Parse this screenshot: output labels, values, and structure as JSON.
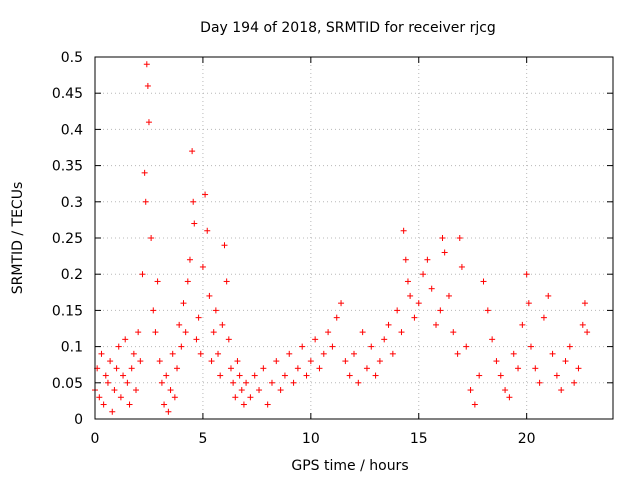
{
  "chart_data": {
    "type": "scatter",
    "title": "Day 194 of 2018, SRMTID for receiver rjcg",
    "xlabel": "GPS time / hours",
    "ylabel": "SRMTID / TECUs",
    "xlim": [
      0,
      24
    ],
    "ylim": [
      0,
      0.5
    ],
    "xticks": [
      0,
      5,
      10,
      15,
      20
    ],
    "xtick_labels": [
      "0",
      "5",
      "10",
      "15",
      "20"
    ],
    "yticks": [
      0,
      0.05,
      0.1,
      0.15,
      0.2,
      0.25,
      0.3,
      0.35,
      0.4,
      0.45,
      0.5
    ],
    "ytick_labels": [
      "0",
      "0.05",
      "0.1",
      "0.15",
      "0.2",
      "0.25",
      "0.3",
      "0.35",
      "0.4",
      "0.45",
      "0.5"
    ],
    "grid": true,
    "marker": "plus",
    "series_color": "#ff0000",
    "series": [
      {
        "name": "SRMTID",
        "x": [
          0.0,
          0.1,
          0.2,
          0.3,
          0.4,
          0.5,
          0.6,
          0.7,
          0.8,
          0.9,
          1.0,
          1.1,
          1.2,
          1.3,
          1.4,
          1.5,
          1.6,
          1.7,
          1.8,
          1.9,
          2.0,
          2.1,
          2.2,
          2.3,
          2.35,
          2.4,
          2.45,
          2.5,
          2.6,
          2.7,
          2.8,
          2.9,
          3.0,
          3.1,
          3.2,
          3.3,
          3.4,
          3.5,
          3.6,
          3.7,
          3.8,
          3.9,
          4.0,
          4.1,
          4.2,
          4.3,
          4.4,
          4.5,
          4.55,
          4.6,
          4.7,
          4.8,
          4.9,
          5.0,
          5.1,
          5.2,
          5.3,
          5.4,
          5.5,
          5.6,
          5.7,
          5.8,
          5.9,
          6.0,
          6.1,
          6.2,
          6.3,
          6.4,
          6.5,
          6.6,
          6.7,
          6.8,
          6.9,
          7.0,
          7.2,
          7.4,
          7.6,
          7.8,
          8.0,
          8.2,
          8.4,
          8.6,
          8.8,
          9.0,
          9.2,
          9.4,
          9.6,
          9.8,
          10.0,
          10.2,
          10.4,
          10.6,
          10.8,
          11.0,
          11.2,
          11.4,
          11.6,
          11.8,
          12.0,
          12.2,
          12.4,
          12.6,
          12.8,
          13.0,
          13.2,
          13.4,
          13.6,
          13.8,
          14.0,
          14.2,
          14.3,
          14.4,
          14.5,
          14.6,
          14.8,
          15.0,
          15.2,
          15.4,
          15.6,
          15.8,
          16.0,
          16.1,
          16.2,
          16.4,
          16.6,
          16.8,
          16.9,
          17.0,
          17.2,
          17.4,
          17.6,
          17.8,
          18.0,
          18.2,
          18.4,
          18.6,
          18.8,
          19.0,
          19.2,
          19.4,
          19.6,
          19.8,
          20.0,
          20.1,
          20.2,
          20.4,
          20.6,
          20.8,
          21.0,
          21.2,
          21.4,
          21.6,
          21.8,
          22.0,
          22.2,
          22.4,
          22.6,
          22.7,
          22.8
        ],
        "y": [
          0.04,
          0.07,
          0.03,
          0.09,
          0.02,
          0.06,
          0.05,
          0.08,
          0.01,
          0.04,
          0.07,
          0.1,
          0.03,
          0.06,
          0.11,
          0.05,
          0.02,
          0.07,
          0.09,
          0.04,
          0.12,
          0.08,
          0.2,
          0.34,
          0.3,
          0.49,
          0.46,
          0.41,
          0.25,
          0.15,
          0.12,
          0.19,
          0.08,
          0.05,
          0.02,
          0.06,
          0.01,
          0.04,
          0.09,
          0.03,
          0.07,
          0.13,
          0.1,
          0.16,
          0.12,
          0.19,
          0.22,
          0.37,
          0.3,
          0.27,
          0.11,
          0.14,
          0.09,
          0.21,
          0.31,
          0.26,
          0.17,
          0.08,
          0.12,
          0.15,
          0.09,
          0.06,
          0.13,
          0.24,
          0.19,
          0.11,
          0.07,
          0.05,
          0.03,
          0.08,
          0.06,
          0.04,
          0.02,
          0.05,
          0.03,
          0.06,
          0.04,
          0.07,
          0.02,
          0.05,
          0.08,
          0.04,
          0.06,
          0.09,
          0.05,
          0.07,
          0.1,
          0.06,
          0.08,
          0.11,
          0.07,
          0.09,
          0.12,
          0.1,
          0.14,
          0.16,
          0.08,
          0.06,
          0.09,
          0.05,
          0.12,
          0.07,
          0.1,
          0.06,
          0.08,
          0.11,
          0.13,
          0.09,
          0.15,
          0.12,
          0.26,
          0.22,
          0.19,
          0.17,
          0.14,
          0.16,
          0.2,
          0.22,
          0.18,
          0.13,
          0.15,
          0.25,
          0.23,
          0.17,
          0.12,
          0.09,
          0.25,
          0.21,
          0.1,
          0.04,
          0.02,
          0.06,
          0.19,
          0.15,
          0.11,
          0.08,
          0.06,
          0.04,
          0.03,
          0.09,
          0.07,
          0.13,
          0.2,
          0.16,
          0.1,
          0.07,
          0.05,
          0.14,
          0.17,
          0.09,
          0.06,
          0.04,
          0.08,
          0.1,
          0.05,
          0.07,
          0.13,
          0.16,
          0.12
        ]
      }
    ]
  }
}
